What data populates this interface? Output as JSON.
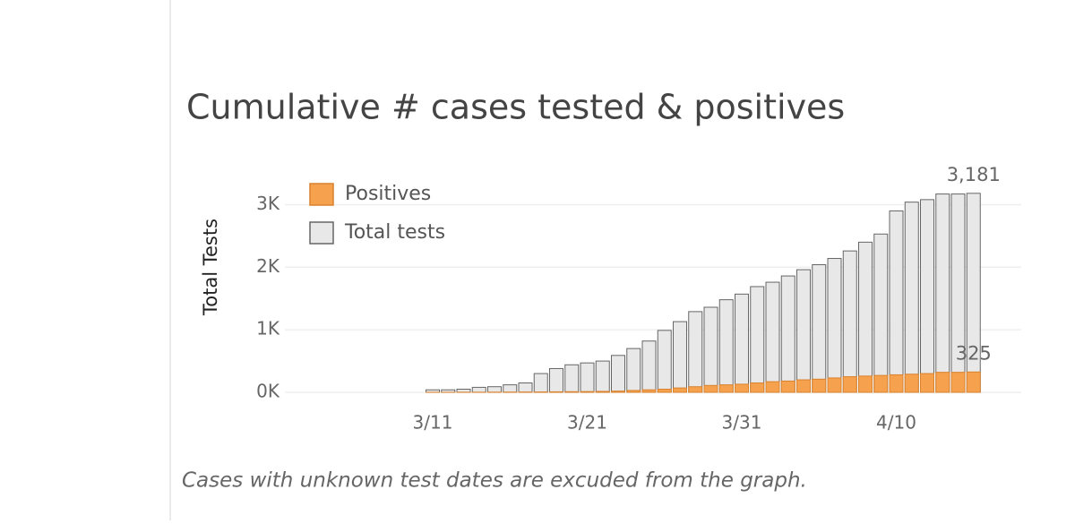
{
  "chart_data": {
    "type": "bar",
    "title": "Cumulative # cases tested & positives",
    "y_label": "Total Tests",
    "footnote": "Cases with unknown test dates are excuded from the graph.",
    "categories": [
      "3/11",
      null,
      null,
      null,
      null,
      null,
      null,
      null,
      null,
      null,
      "3/21",
      null,
      null,
      null,
      null,
      null,
      null,
      null,
      null,
      null,
      "3/31",
      null,
      null,
      null,
      null,
      null,
      null,
      null,
      null,
      null,
      "4/10",
      null,
      null,
      null,
      null,
      null
    ],
    "series": [
      {
        "name": "Positives",
        "color": "#f6a14e",
        "border": "#d9822e",
        "values": [
          1,
          1,
          2,
          2,
          3,
          4,
          5,
          6,
          8,
          10,
          12,
          15,
          20,
          30,
          40,
          50,
          70,
          90,
          110,
          120,
          130,
          150,
          170,
          180,
          200,
          210,
          230,
          250,
          260,
          270,
          280,
          290,
          300,
          320,
          320,
          325
        ],
        "value_labels": [
          null,
          null,
          null,
          null,
          null,
          null,
          null,
          null,
          null,
          null,
          null,
          null,
          null,
          null,
          null,
          null,
          null,
          null,
          null,
          null,
          null,
          null,
          null,
          null,
          null,
          null,
          null,
          null,
          null,
          null,
          null,
          null,
          null,
          null,
          null,
          "325"
        ]
      },
      {
        "name": "Total tests",
        "color": "#e8e8e8",
        "border": "#666666",
        "values": [
          40,
          40,
          50,
          80,
          90,
          120,
          150,
          300,
          380,
          440,
          470,
          500,
          590,
          700,
          820,
          990,
          1130,
          1290,
          1360,
          1480,
          1570,
          1690,
          1760,
          1860,
          1960,
          2040,
          2140,
          2260,
          2400,
          2530,
          2900,
          3040,
          3080,
          3170,
          3170,
          3181
        ],
        "value_labels": [
          null,
          null,
          null,
          null,
          null,
          null,
          null,
          null,
          null,
          null,
          null,
          null,
          null,
          null,
          null,
          null,
          null,
          null,
          null,
          null,
          null,
          null,
          null,
          null,
          null,
          null,
          null,
          null,
          null,
          null,
          null,
          null,
          null,
          null,
          null,
          "3,181"
        ]
      }
    ],
    "overlap": true,
    "ylim": [
      0,
      3300
    ],
    "yticks": [
      {
        "value": 0,
        "label": "0K"
      },
      {
        "value": 1000,
        "label": "1K"
      },
      {
        "value": 2000,
        "label": "2K"
      },
      {
        "value": 3000,
        "label": "3K"
      }
    ],
    "grid": true,
    "legend": "top-left"
  }
}
